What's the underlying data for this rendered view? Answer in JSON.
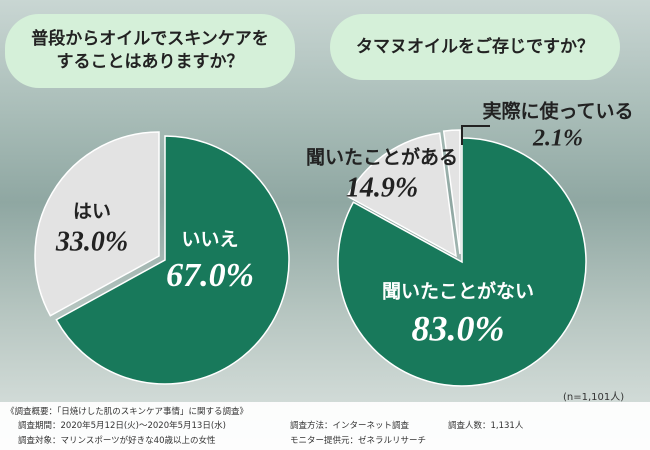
{
  "chart_data": [
    {
      "type": "pie",
      "title": "普段からオイルでスキンケアをすることはありますか？",
      "categories": [
        "いいえ",
        "はい"
      ],
      "values": [
        67.0,
        33.0
      ],
      "value_labels": [
        "67.0%",
        "33.0%"
      ],
      "colors": [
        "#18795b",
        "#e3e3e3"
      ]
    },
    {
      "type": "pie",
      "title": "タマヌオイルをご存じですか？",
      "categories": [
        "聞いたことがない",
        "聞いたことがある",
        "実際に使っている"
      ],
      "values": [
        83.0,
        14.9,
        2.1
      ],
      "value_labels": [
        "83.0%",
        "14.9%",
        "2.1%"
      ],
      "colors": [
        "#18795b",
        "#e3e3e3",
        "#e3e3e3"
      ]
    }
  ],
  "survey": {
    "heading": "《調査概要：「日焼けした肌のスキンケア事情」に関する調査》",
    "period": "調査期間：2020年5月12日(火)～2020年5月13日(水)",
    "method": "調査方法：インターネット調査",
    "count": "調査人数：1,131人",
    "target": "調査対象：マリンスポーツが好きな40歳以上の女性",
    "provider": "モニター提供元：ゼネラルリサーチ",
    "n": "(n=1,101人)"
  }
}
